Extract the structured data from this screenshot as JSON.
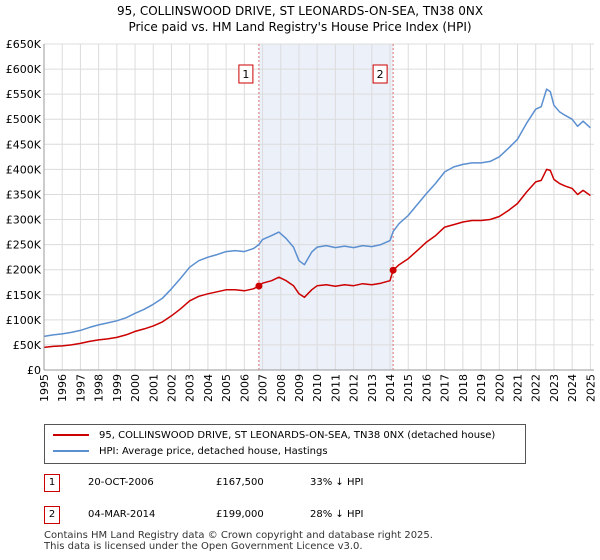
{
  "chart_data": {
    "type": "line",
    "title": "95, COLLINSWOOD DRIVE, ST LEONARDS-ON-SEA, TN38 0NX",
    "subtitle": "Price paid vs. HM Land Registry's House Price Index (HPI)",
    "ylim": [
      0,
      650000
    ],
    "xlim": [
      1995,
      2025.2
    ],
    "y_ticks": [
      0,
      50000,
      100000,
      150000,
      200000,
      250000,
      300000,
      350000,
      400000,
      450000,
      500000,
      550000,
      600000,
      650000
    ],
    "y_tick_labels": [
      "£0",
      "£50K",
      "£100K",
      "£150K",
      "£200K",
      "£250K",
      "£300K",
      "£350K",
      "£400K",
      "£450K",
      "£500K",
      "£550K",
      "£600K",
      "£650K"
    ],
    "x_ticks": [
      1995,
      1996,
      1997,
      1998,
      1999,
      2000,
      2001,
      2002,
      2003,
      2004,
      2005,
      2006,
      2007,
      2008,
      2009,
      2010,
      2011,
      2012,
      2013,
      2014,
      2015,
      2016,
      2017,
      2018,
      2019,
      2020,
      2021,
      2022,
      2023,
      2024,
      2025
    ],
    "x_tick_labels": [
      "1995",
      "1996",
      "1997",
      "1998",
      "1999",
      "2000",
      "2001",
      "2002",
      "2003",
      "2004",
      "2005",
      "2006",
      "2007",
      "2008",
      "2009",
      "2010",
      "2011",
      "2012",
      "2013",
      "2014",
      "2015",
      "2016",
      "2017",
      "2018",
      "2019",
      "2020",
      "2021",
      "2022",
      "2023",
      "2024",
      "2025"
    ],
    "grid": true,
    "shaded_period": [
      2006.8,
      2014.17
    ],
    "series": [
      {
        "name": "95, COLLINSWOOD DRIVE, ST LEONARDS-ON-SEA, TN38 0NX (detached house)",
        "color": "#cc0000",
        "x": [
          1995.0,
          1995.5,
          1996.0,
          1996.5,
          1997.0,
          1997.5,
          1998.0,
          1998.5,
          1999.0,
          1999.5,
          2000.0,
          2000.5,
          2001.0,
          2001.5,
          2002.0,
          2002.5,
          2003.0,
          2003.5,
          2004.0,
          2004.5,
          2005.0,
          2005.5,
          2006.0,
          2006.5,
          2006.8,
          2007.0,
          2007.5,
          2007.9,
          2008.3,
          2008.7,
          2009.0,
          2009.3,
          2009.7,
          2010.0,
          2010.5,
          2011.0,
          2011.5,
          2012.0,
          2012.5,
          2013.0,
          2013.5,
          2014.0,
          2014.17,
          2014.5,
          2015.0,
          2015.5,
          2016.0,
          2016.5,
          2017.0,
          2017.5,
          2018.0,
          2018.5,
          2019.0,
          2019.5,
          2020.0,
          2020.5,
          2021.0,
          2021.5,
          2022.0,
          2022.3,
          2022.6,
          2022.8,
          2023.0,
          2023.3,
          2023.6,
          2024.0,
          2024.3,
          2024.6,
          2025.0
        ],
        "y": [
          45000,
          47000,
          48000,
          50000,
          53000,
          57000,
          60000,
          62000,
          65000,
          70000,
          77000,
          82000,
          88000,
          96000,
          108000,
          122000,
          138000,
          147000,
          152000,
          156000,
          160000,
          160000,
          158000,
          162000,
          167500,
          173000,
          178000,
          185000,
          178000,
          168000,
          152000,
          145000,
          160000,
          168000,
          170000,
          167000,
          170000,
          168000,
          172000,
          170000,
          173000,
          178000,
          199000,
          210000,
          222000,
          238000,
          255000,
          268000,
          285000,
          290000,
          295000,
          298000,
          298000,
          300000,
          306000,
          318000,
          332000,
          355000,
          375000,
          378000,
          400000,
          398000,
          380000,
          372000,
          367000,
          362000,
          350000,
          358000,
          348000
        ]
      },
      {
        "name": "HPI: Average price, detached house, Hastings",
        "color": "#5b8fd0",
        "x": [
          1995.0,
          1995.5,
          1996.0,
          1996.5,
          1997.0,
          1997.5,
          1998.0,
          1998.5,
          1999.0,
          1999.5,
          2000.0,
          2000.5,
          2001.0,
          2001.5,
          2002.0,
          2002.5,
          2003.0,
          2003.5,
          2004.0,
          2004.5,
          2005.0,
          2005.5,
          2006.0,
          2006.5,
          2006.8,
          2007.0,
          2007.5,
          2007.9,
          2008.3,
          2008.7,
          2009.0,
          2009.3,
          2009.7,
          2010.0,
          2010.5,
          2011.0,
          2011.5,
          2012.0,
          2012.5,
          2013.0,
          2013.5,
          2014.0,
          2014.17,
          2014.5,
          2015.0,
          2015.5,
          2016.0,
          2016.5,
          2017.0,
          2017.5,
          2018.0,
          2018.5,
          2019.0,
          2019.5,
          2020.0,
          2020.5,
          2021.0,
          2021.5,
          2022.0,
          2022.3,
          2022.6,
          2022.8,
          2023.0,
          2023.3,
          2023.6,
          2024.0,
          2024.3,
          2024.6,
          2025.0
        ],
        "y": [
          67000,
          70000,
          72000,
          75000,
          79000,
          85000,
          90000,
          94000,
          98000,
          104000,
          113000,
          121000,
          131000,
          143000,
          162000,
          183000,
          205000,
          218000,
          225000,
          230000,
          236000,
          238000,
          236000,
          242000,
          250000,
          260000,
          268000,
          275000,
          262000,
          245000,
          218000,
          210000,
          235000,
          245000,
          248000,
          244000,
          247000,
          244000,
          248000,
          246000,
          250000,
          258000,
          276000,
          292000,
          308000,
          330000,
          352000,
          372000,
          395000,
          405000,
          410000,
          413000,
          413000,
          416000,
          425000,
          442000,
          460000,
          492000,
          520000,
          525000,
          560000,
          555000,
          528000,
          515000,
          508000,
          500000,
          486000,
          496000,
          483000
        ]
      }
    ],
    "sales": [
      {
        "marker": "1",
        "x": 2006.8,
        "y": 167500
      },
      {
        "marker": "2",
        "x": 2014.17,
        "y": 199000
      }
    ]
  },
  "legend": {
    "property_label": "95, COLLINSWOOD DRIVE, ST LEONARDS-ON-SEA, TN38 0NX (detached house)",
    "hpi_label": "HPI: Average price, detached house, Hastings",
    "property_color": "#cc0000",
    "hpi_color": "#5b8fd0"
  },
  "transactions": [
    {
      "marker": "1",
      "date": "20-OCT-2006",
      "price": "£167,500",
      "hpi_delta": "33% ↓ HPI"
    },
    {
      "marker": "2",
      "date": "04-MAR-2014",
      "price": "£199,000",
      "hpi_delta": "28% ↓ HPI"
    }
  ],
  "footer": {
    "line1": "Contains HM Land Registry data © Crown copyright and database right 2025.",
    "line2": "This data is licensed under the Open Government Licence v3.0."
  }
}
